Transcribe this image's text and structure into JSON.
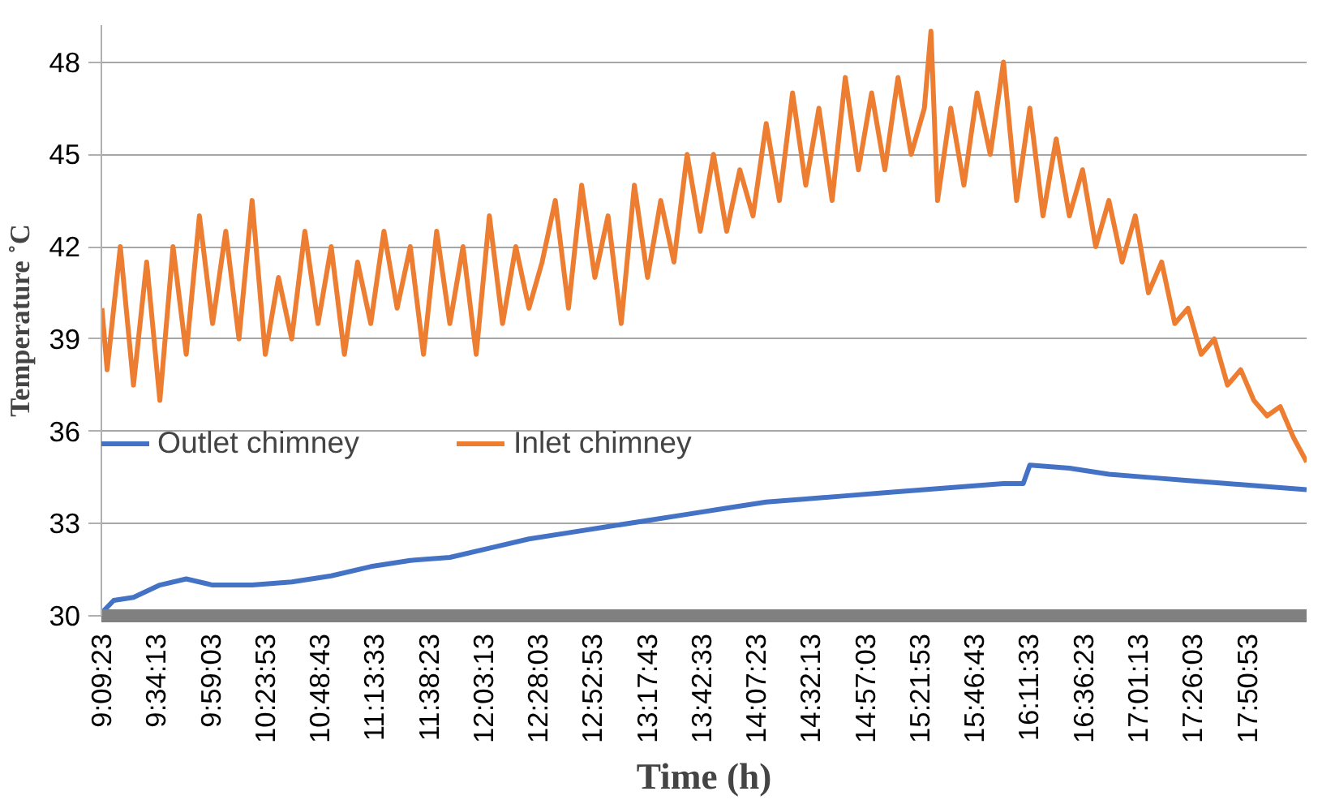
{
  "chart_data": {
    "type": "line",
    "xlabel": "Time (h)",
    "ylabel": "Temperature ˚C",
    "xlim": [
      9.156389,
      18.3
    ],
    "ylim": [
      30,
      49.2
    ],
    "xticks": [
      {
        "value": 9.156389,
        "label": "9:09:23"
      },
      {
        "value": 9.570278,
        "label": "9:34:13"
      },
      {
        "value": 9.984167,
        "label": "9:59:03"
      },
      {
        "value": 10.398056,
        "label": "10:23:53"
      },
      {
        "value": 10.811944,
        "label": "10:48:43"
      },
      {
        "value": 11.225833,
        "label": "11:13:33"
      },
      {
        "value": 11.639722,
        "label": "11:38:23"
      },
      {
        "value": 12.053611,
        "label": "12:03:13"
      },
      {
        "value": 12.4675,
        "label": "12:28:03"
      },
      {
        "value": 12.881389,
        "label": "12:52:53"
      },
      {
        "value": 13.295278,
        "label": "13:17:43"
      },
      {
        "value": 13.709167,
        "label": "13:42:33"
      },
      {
        "value": 14.123056,
        "label": "14:07:23"
      },
      {
        "value": 14.536944,
        "label": "14:32:13"
      },
      {
        "value": 14.950833,
        "label": "14:57:03"
      },
      {
        "value": 15.364722,
        "label": "15:21:53"
      },
      {
        "value": 15.778611,
        "label": "15:46:43"
      },
      {
        "value": 16.1925,
        "label": "16:11:33"
      },
      {
        "value": 16.606389,
        "label": "16:36:23"
      },
      {
        "value": 17.020278,
        "label": "17:01:13"
      },
      {
        "value": 17.434167,
        "label": "17:26:03"
      },
      {
        "value": 17.848056,
        "label": "17:50:53"
      }
    ],
    "yticks": [
      30,
      33,
      36,
      39,
      42,
      45,
      48
    ],
    "grid": "y",
    "legend": "left",
    "marker": "none",
    "line_style": "solid",
    "series": [
      {
        "name": "Outlet chimney",
        "color": "#4472c4",
        "x": [
          9.16,
          9.25,
          9.4,
          9.6,
          9.8,
          10.0,
          10.3,
          10.6,
          10.9,
          11.2,
          11.5,
          11.8,
          12.1,
          12.4,
          12.7,
          13.0,
          13.3,
          13.6,
          13.9,
          14.2,
          14.5,
          14.8,
          15.1,
          15.4,
          15.7,
          16.0,
          16.15,
          16.2,
          16.5,
          16.8,
          17.1,
          17.4,
          17.7,
          18.0,
          18.3
        ],
        "values": [
          30.1,
          30.5,
          30.6,
          31.0,
          31.2,
          31.0,
          31.0,
          31.1,
          31.3,
          31.6,
          31.8,
          31.9,
          32.2,
          32.5,
          32.7,
          32.9,
          33.1,
          33.3,
          33.5,
          33.7,
          33.8,
          33.9,
          34.0,
          34.1,
          34.2,
          34.3,
          34.3,
          34.9,
          34.8,
          34.6,
          34.5,
          34.4,
          34.3,
          34.2,
          34.1
        ]
      },
      {
        "name": "Inlet chimney",
        "color": "#ed7d31",
        "x": [
          9.16,
          9.2,
          9.3,
          9.4,
          9.5,
          9.6,
          9.7,
          9.8,
          9.9,
          10.0,
          10.1,
          10.2,
          10.3,
          10.4,
          10.5,
          10.6,
          10.7,
          10.8,
          10.9,
          11.0,
          11.1,
          11.2,
          11.3,
          11.4,
          11.5,
          11.6,
          11.7,
          11.8,
          11.9,
          12.0,
          12.1,
          12.2,
          12.3,
          12.4,
          12.5,
          12.6,
          12.7,
          12.8,
          12.9,
          13.0,
          13.1,
          13.2,
          13.3,
          13.4,
          13.5,
          13.6,
          13.7,
          13.8,
          13.9,
          14.0,
          14.1,
          14.2,
          14.3,
          14.4,
          14.5,
          14.6,
          14.7,
          14.8,
          14.9,
          15.0,
          15.1,
          15.2,
          15.3,
          15.4,
          15.45,
          15.5,
          15.6,
          15.7,
          15.8,
          15.9,
          16.0,
          16.1,
          16.2,
          16.3,
          16.4,
          16.5,
          16.6,
          16.7,
          16.8,
          16.9,
          17.0,
          17.1,
          17.2,
          17.3,
          17.4,
          17.5,
          17.6,
          17.7,
          17.8,
          17.9,
          18.0,
          18.1,
          18.2,
          18.3
        ],
        "values": [
          40,
          38,
          42,
          37.5,
          41.5,
          37,
          42,
          38.5,
          43,
          39.5,
          42.5,
          39,
          43.5,
          38.5,
          41,
          39,
          42.5,
          39.5,
          42,
          38.5,
          41.5,
          39.5,
          42.5,
          40,
          42,
          38.5,
          42.5,
          39.5,
          42,
          38.5,
          43,
          39.5,
          42,
          40,
          41.5,
          43.5,
          40,
          44,
          41,
          43,
          39.5,
          44,
          41,
          43.5,
          41.5,
          45,
          42.5,
          45,
          42.5,
          44.5,
          43,
          46,
          43.5,
          47,
          44,
          46.5,
          43.5,
          47.5,
          44.5,
          47,
          44.5,
          47.5,
          45,
          46.5,
          49,
          43.5,
          46.5,
          44,
          47,
          45,
          48,
          43.5,
          46.5,
          43,
          45.5,
          43,
          44.5,
          42,
          43.5,
          41.5,
          43,
          40.5,
          41.5,
          39.5,
          40,
          38.5,
          39,
          37.5,
          38,
          37,
          36.5,
          36.8,
          35.8,
          35
        ]
      }
    ]
  }
}
